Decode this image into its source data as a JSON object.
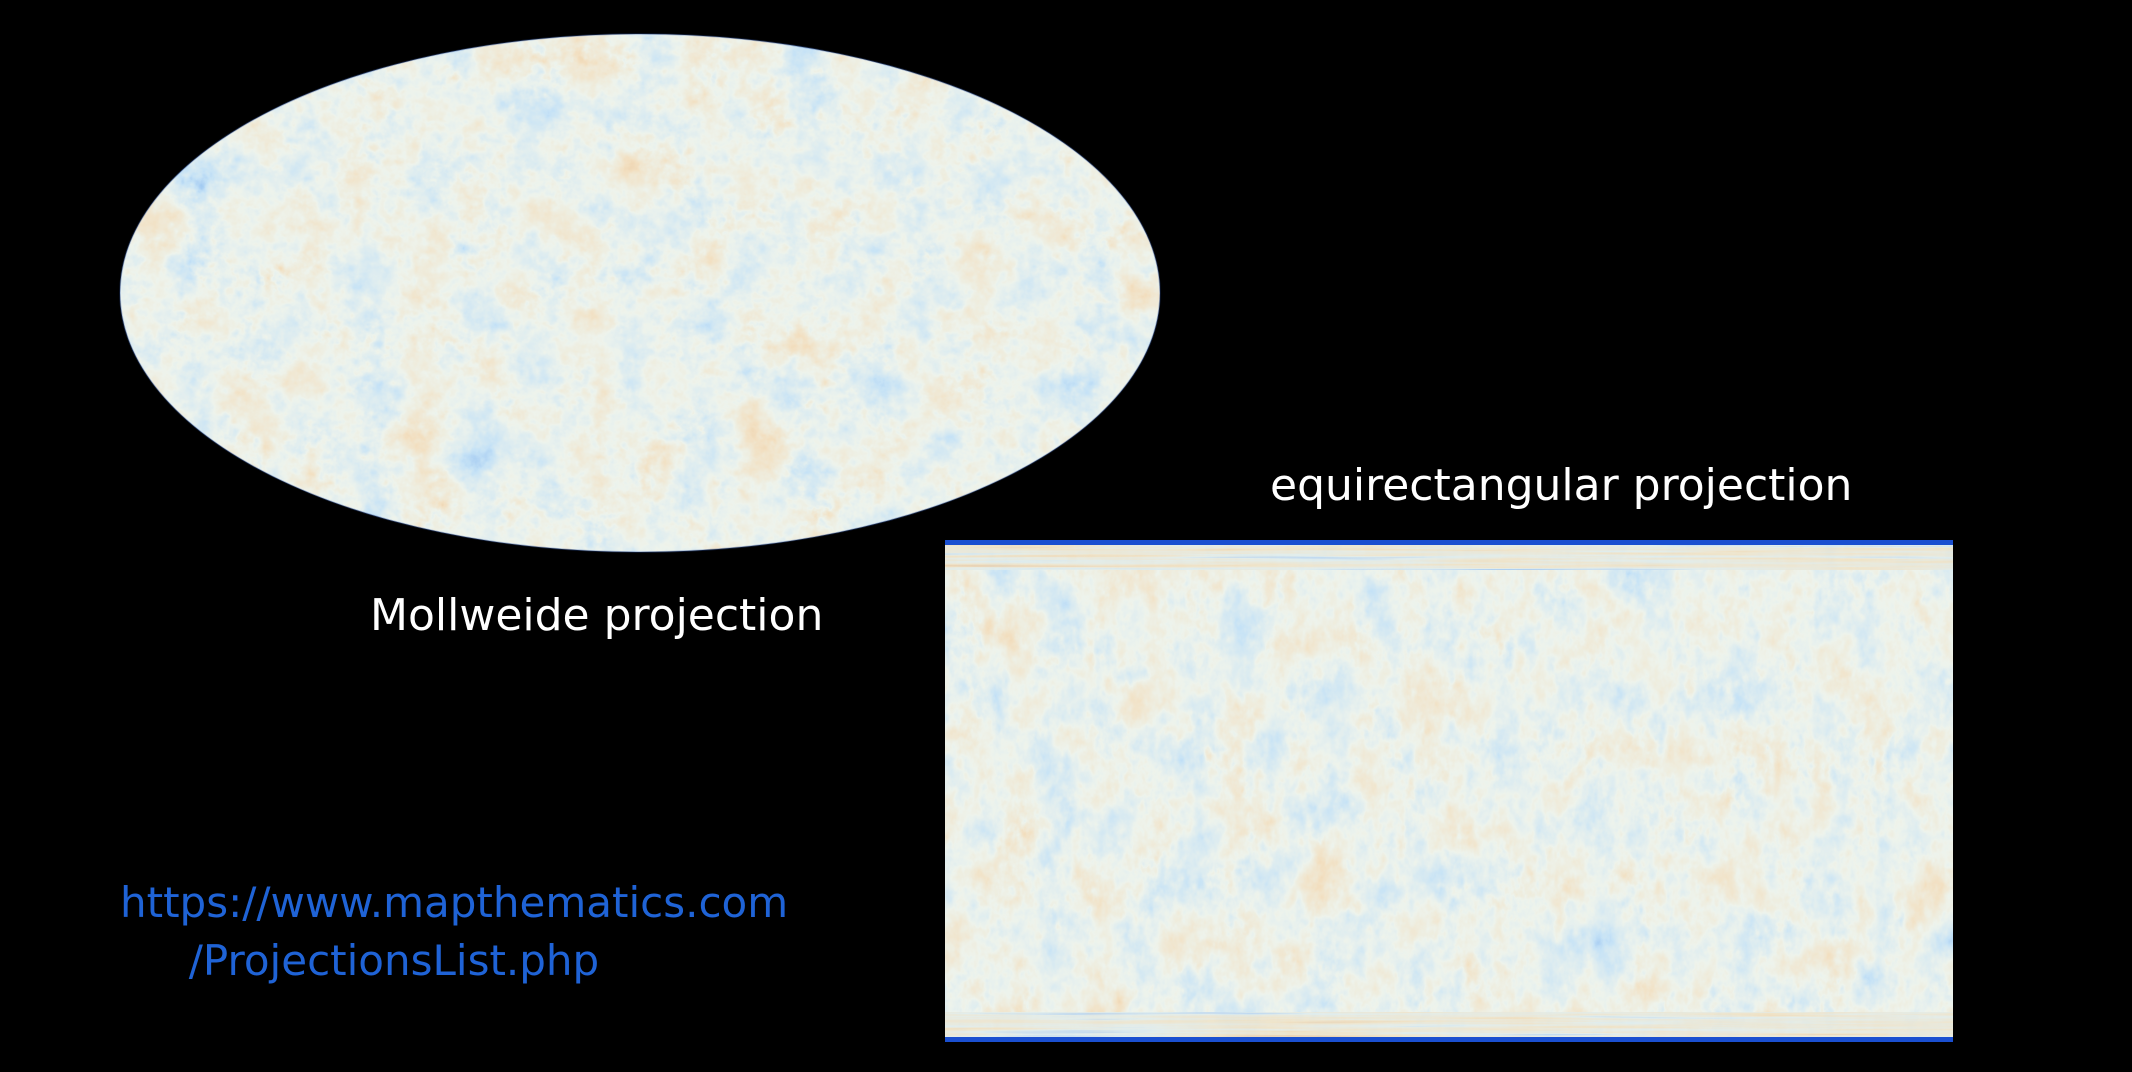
{
  "background_color": "#000000",
  "maps": {
    "mollweide": {
      "caption": "Mollweide projection",
      "icon": "cmb-sky-map-ellipse"
    },
    "equirectangular": {
      "caption": "equirectangular projection",
      "icon": "cmb-sky-map-rectangle"
    }
  },
  "palette": {
    "deep_blue": "#1236c8",
    "mid_blue": "#2f6fdc",
    "light_blue": "#8fc1ea",
    "pale": "#d9e6d6",
    "tan": "#e2bd86",
    "orange": "#cf8a4c",
    "red_brown": "#a24a22"
  },
  "link": {
    "line1": "https://www.mapthematics.com",
    "line2": "/ProjectionsList.php",
    "color": "#1f63d6"
  }
}
